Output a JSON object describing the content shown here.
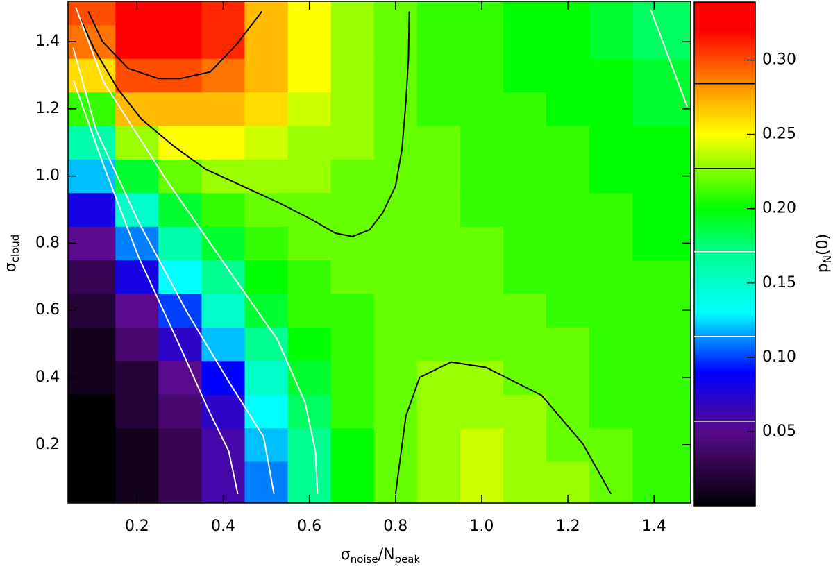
{
  "chart_data": {
    "type": "heatmap",
    "x_label": {
      "symbol": "σ",
      "sub": "noise",
      "mid": "/N",
      "sub2": "peak"
    },
    "y_label": {
      "symbol": "σ",
      "sub": "cloud"
    },
    "colorbar_label": {
      "symbol": "p",
      "sub": "N",
      "rest": "(0)"
    },
    "xlim": [
      0.04,
      1.485
    ],
    "ylim": [
      0.026,
      1.52
    ],
    "zlim": [
      0,
      0.339
    ],
    "xticks": [
      0.2,
      0.4,
      0.6,
      0.8,
      {
        "value": 1,
        "label": "1.0"
      },
      1.2,
      1.4
    ],
    "yticks": [
      0.2,
      0.4,
      0.6,
      0.8,
      {
        "value": 1,
        "label": "1.0"
      },
      1.2,
      1.4
    ],
    "zticks": [
      0.05,
      {
        "value": 0.1,
        "label": "0.10"
      },
      0.15,
      {
        "value": 0.2,
        "label": "0.20"
      },
      0.25,
      {
        "value": 0.3,
        "label": "0.30"
      }
    ],
    "colorscale": [
      {
        "value": 0,
        "color": "#000000"
      },
      {
        "value": 0.05,
        "color": "#5a0a8c"
      },
      {
        "value": 0.09,
        "color": "#0000ff"
      },
      {
        "value": 0.13,
        "color": "#00ffff"
      },
      {
        "value": 0.17,
        "color": "#00ff90"
      },
      {
        "value": 0.2,
        "color": "#00ff00"
      },
      {
        "value": 0.25,
        "color": "#ffff00"
      },
      {
        "value": 0.28,
        "color": "#ff9900"
      },
      {
        "value": 0.32,
        "color": "#ff0000"
      }
    ],
    "x": [
      0.1,
      0.2,
      0.3,
      0.4,
      0.5,
      0.6,
      0.7,
      0.8,
      0.9,
      1.0,
      1.1,
      1.2,
      1.3,
      1.4
    ],
    "y": [
      0.1,
      0.2,
      0.3,
      0.4,
      0.5,
      0.6,
      0.7,
      0.8,
      0.9,
      1.0,
      1.1,
      1.2,
      1.3,
      1.4,
      1.5
    ],
    "z": [
      [
        0.0,
        0.01,
        0.03,
        0.06,
        0.11,
        0.17,
        0.2,
        0.22,
        0.23,
        0.24,
        0.23,
        0.23,
        0.22,
        0.21
      ],
      [
        0.0,
        0.01,
        0.03,
        0.06,
        0.12,
        0.17,
        0.2,
        0.22,
        0.23,
        0.24,
        0.23,
        0.22,
        0.22,
        0.21
      ],
      [
        0.0,
        0.02,
        0.04,
        0.07,
        0.13,
        0.18,
        0.21,
        0.22,
        0.23,
        0.23,
        0.23,
        0.22,
        0.21,
        0.21
      ],
      [
        0.01,
        0.02,
        0.05,
        0.09,
        0.15,
        0.19,
        0.21,
        0.22,
        0.23,
        0.23,
        0.22,
        0.22,
        0.21,
        0.21
      ],
      [
        0.01,
        0.04,
        0.07,
        0.12,
        0.17,
        0.2,
        0.21,
        0.22,
        0.22,
        0.22,
        0.22,
        0.22,
        0.21,
        0.21
      ],
      [
        0.02,
        0.05,
        0.1,
        0.15,
        0.19,
        0.21,
        0.21,
        0.22,
        0.22,
        0.22,
        0.22,
        0.21,
        0.21,
        0.21
      ],
      [
        0.03,
        0.08,
        0.13,
        0.17,
        0.2,
        0.21,
        0.22,
        0.22,
        0.22,
        0.22,
        0.21,
        0.21,
        0.21,
        0.21
      ],
      [
        0.05,
        0.11,
        0.16,
        0.19,
        0.21,
        0.22,
        0.22,
        0.22,
        0.22,
        0.22,
        0.21,
        0.21,
        0.21,
        0.2
      ],
      [
        0.08,
        0.15,
        0.19,
        0.21,
        0.22,
        0.22,
        0.22,
        0.22,
        0.22,
        0.21,
        0.21,
        0.21,
        0.21,
        0.2
      ],
      [
        0.12,
        0.19,
        0.22,
        0.23,
        0.23,
        0.23,
        0.22,
        0.22,
        0.22,
        0.21,
        0.21,
        0.21,
        0.2,
        0.2
      ],
      [
        0.16,
        0.23,
        0.25,
        0.25,
        0.24,
        0.23,
        0.23,
        0.22,
        0.22,
        0.21,
        0.21,
        0.21,
        0.2,
        0.2
      ],
      [
        0.21,
        0.27,
        0.27,
        0.27,
        0.26,
        0.24,
        0.23,
        0.22,
        0.21,
        0.21,
        0.21,
        0.2,
        0.2,
        0.19
      ],
      [
        0.26,
        0.3,
        0.3,
        0.29,
        0.27,
        0.25,
        0.23,
        0.22,
        0.21,
        0.21,
        0.2,
        0.2,
        0.2,
        0.19
      ],
      [
        0.29,
        0.32,
        0.33,
        0.31,
        0.27,
        0.25,
        0.23,
        0.22,
        0.21,
        0.21,
        0.2,
        0.2,
        0.19,
        0.18
      ],
      [
        0.3,
        0.33,
        0.33,
        0.31,
        0.27,
        0.25,
        0.23,
        0.22,
        0.21,
        0.21,
        0.2,
        0.2,
        0.19,
        0.18
      ]
    ],
    "contours": [
      {
        "level": 0.284,
        "color": "#000000",
        "x": [
          0.087,
          0.12,
          0.18,
          0.25,
          0.3,
          0.37,
          0.43,
          0.49
        ],
        "y": [
          1.49,
          1.4,
          1.32,
          1.29,
          1.29,
          1.31,
          1.39,
          1.49
        ]
      },
      {
        "level": 0.227,
        "color": "#000000",
        "x": [
          0.061,
          0.1,
          0.155,
          0.21,
          0.284,
          0.36,
          0.445,
          0.53,
          0.606,
          0.66,
          0.7,
          0.74,
          0.77,
          0.8,
          0.815,
          0.824,
          0.83,
          0.832
        ],
        "y": [
          1.49,
          1.38,
          1.26,
          1.17,
          1.09,
          1.02,
          0.97,
          0.92,
          0.87,
          0.83,
          0.82,
          0.84,
          0.89,
          0.97,
          1.08,
          1.22,
          1.35,
          1.49
        ]
      },
      {
        "level": 0.227,
        "color": "#000000",
        "x": [
          0.8,
          0.824,
          0.856,
          0.929,
          1.01,
          1.139,
          1.235,
          1.3
        ],
        "y": [
          0.053,
          0.285,
          0.4,
          0.446,
          0.43,
          0.347,
          0.202,
          0.053
        ]
      },
      {
        "level": 0.057,
        "color": "#ffffff",
        "x": [
          0.053,
          0.123,
          0.203,
          0.3,
          0.365,
          0.413,
          0.434
        ],
        "y": [
          1.283,
          1.03,
          0.761,
          0.492,
          0.306,
          0.181,
          0.053
        ]
      },
      {
        "level": 0.114,
        "color": "#ffffff",
        "x": [
          0.052,
          0.106,
          0.203,
          0.316,
          0.413,
          0.494,
          0.518
        ],
        "y": [
          1.382,
          1.134,
          0.865,
          0.595,
          0.388,
          0.223,
          0.053
        ]
      },
      {
        "level": 0.171,
        "color": "#ffffff",
        "x": [
          0.058,
          0.123,
          0.268,
          0.413,
          0.526,
          0.59,
          0.614,
          0.619
        ],
        "y": [
          1.502,
          1.279,
          0.989,
          0.72,
          0.513,
          0.326,
          0.181,
          0.053
        ]
      },
      {
        "level": 0.171,
        "color": "#ffffff",
        "x": [
          1.392,
          1.477
        ],
        "y": [
          1.496,
          1.206
        ]
      }
    ]
  }
}
